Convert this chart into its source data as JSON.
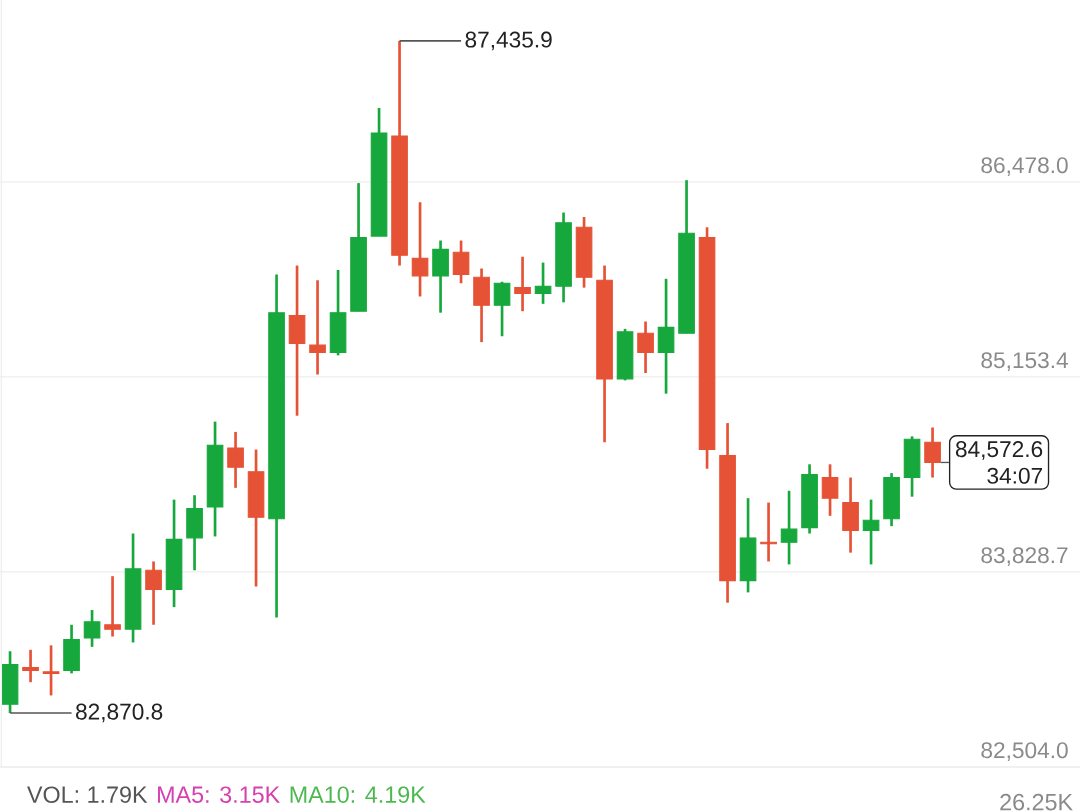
{
  "chart_data": {
    "type": "candlestick",
    "categories": [
      null,
      null,
      null,
      null,
      null,
      null,
      null,
      null,
      null,
      null,
      null,
      null,
      null,
      null,
      null,
      null,
      null,
      null,
      null,
      null,
      null,
      null,
      null,
      null,
      null,
      null,
      null,
      null,
      null,
      null,
      null,
      null,
      null,
      null,
      null,
      null,
      null,
      null,
      null,
      null,
      null,
      null,
      null,
      null,
      null,
      null
    ],
    "ohlc": [
      [
        82930,
        83290,
        82870.8,
        83200
      ],
      [
        83180,
        83300,
        83080,
        83160
      ],
      [
        83150,
        83330,
        82990,
        83140
      ],
      [
        83160,
        83470,
        83140,
        83370
      ],
      [
        83380,
        83570,
        83320,
        83490
      ],
      [
        83470,
        83800,
        83390,
        83440
      ],
      [
        83440,
        84090,
        83350,
        83850
      ],
      [
        83840,
        83900,
        83470,
        83710
      ],
      [
        83710,
        84320,
        83590,
        84050
      ],
      [
        84060,
        84350,
        83840,
        84260
      ],
      [
        84270,
        84850,
        84070,
        84690
      ],
      [
        84670,
        84780,
        84400,
        84540
      ],
      [
        84510,
        84660,
        83730,
        84200
      ],
      [
        84190,
        85850,
        83520,
        85590
      ],
      [
        85570,
        85910,
        84890,
        85380
      ],
      [
        85370,
        85810,
        85170,
        85320
      ],
      [
        85320,
        85880,
        85300,
        85590
      ],
      [
        85600,
        86470,
        85600,
        86100
      ],
      [
        86110,
        86980,
        86110,
        86810
      ],
      [
        86790,
        87435.9,
        85910,
        85980
      ],
      [
        85960,
        86340,
        85700,
        85840
      ],
      [
        85840,
        86080,
        85590,
        86020
      ],
      [
        86000,
        86080,
        85790,
        85850
      ],
      [
        85830,
        85890,
        85390,
        85640
      ],
      [
        85640,
        85800,
        85430,
        85790
      ],
      [
        85760,
        85970,
        85600,
        85720
      ],
      [
        85720,
        85930,
        85650,
        85770
      ],
      [
        85770,
        86270,
        85660,
        86200
      ],
      [
        86170,
        86240,
        85760,
        85830
      ],
      [
        85810,
        85910,
        84710,
        85140
      ],
      [
        85140,
        85480,
        85130,
        85460
      ],
      [
        85450,
        85530,
        85180,
        85320
      ],
      [
        85320,
        85820,
        85040,
        85490
      ],
      [
        85450,
        86490,
        85450,
        86130
      ],
      [
        86100,
        86170,
        84530,
        84660
      ],
      [
        84620,
        84840,
        83620,
        83770
      ],
      [
        83770,
        84330,
        83690,
        84060
      ],
      [
        84030,
        84300,
        83900,
        84020
      ],
      [
        84030,
        84380,
        83880,
        84120
      ],
      [
        84130,
        84560,
        84090,
        84490
      ],
      [
        84470,
        84560,
        84210,
        84330
      ],
      [
        84300,
        84470,
        83960,
        84110
      ],
      [
        84110,
        84320,
        83880,
        84180
      ],
      [
        84190,
        84500,
        84140,
        84470
      ],
      [
        84470,
        84750,
        84340,
        84730
      ],
      [
        84710,
        84810,
        84470,
        84572.6
      ]
    ],
    "colors": [
      "#16a83c",
      "#e65235",
      "#e65235",
      "#16a83c",
      "#16a83c",
      "#e65235",
      "#16a83c",
      "#e65235",
      "#16a83c",
      "#16a83c",
      "#16a83c",
      "#e65235",
      "#e65235",
      "#16a83c",
      "#e65235",
      "#e65235",
      "#16a83c",
      "#16a83c",
      "#16a83c",
      "#e65235",
      "#e65235",
      "#16a83c",
      "#e65235",
      "#e65235",
      "#16a83c",
      "#e65235",
      "#16a83c",
      "#16a83c",
      "#e65235",
      "#e65235",
      "#16a83c",
      "#e65235",
      "#16a83c",
      "#16a83c",
      "#e65235",
      "#e65235",
      "#16a83c",
      "#e65235",
      "#16a83c",
      "#16a83c",
      "#e65235",
      "#e65235",
      "#16a83c",
      "#16a83c",
      "#16a83c",
      "#e65235"
    ],
    "ylim": [
      82504.0,
      87714.0
    ],
    "yticks": [
      {
        "value": 82504.0,
        "label": "82,504.0"
      },
      {
        "value": 83828.7,
        "label": "83,828.7"
      },
      {
        "value": 85153.4,
        "label": "85,153.4"
      },
      {
        "value": 86478.0,
        "label": "86,478.0"
      }
    ],
    "grid": "y",
    "tick_labels": "y",
    "annotations": [
      "87,435.9",
      "82,870.8",
      "84,572.6",
      "34:07",
      "VOL: 1.79K",
      "MA5: 3.15K",
      "MA10: 4.19K",
      "26.25K"
    ]
  }
}
